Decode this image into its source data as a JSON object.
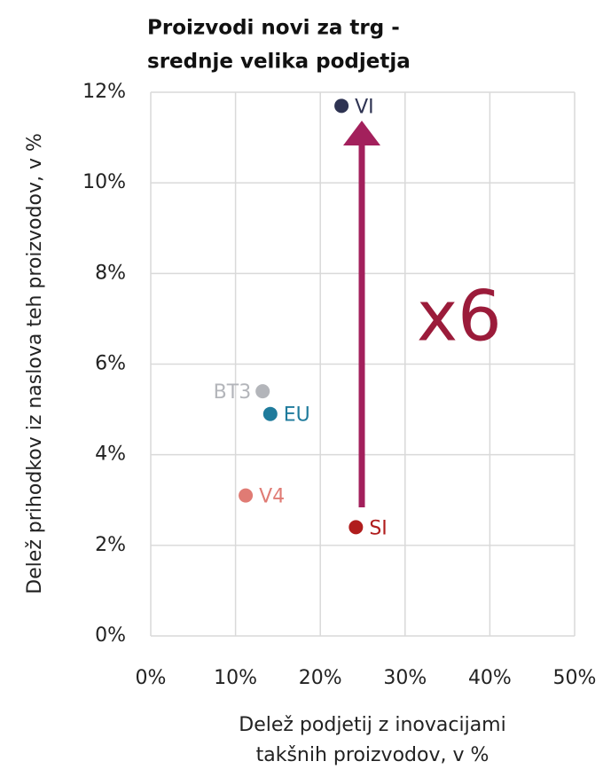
{
  "chart_data": {
    "type": "scatter",
    "title": [
      "Proizvodi novi za trg -",
      "srednje velika podjetja"
    ],
    "x_label": [
      "Delež podjetij z inovacijami",
      "takšnih proizvodov, v %"
    ],
    "y_label": "Delež prihodkov iz naslova teh proizvodov, v %",
    "series": [
      {
        "name": "VI",
        "color": "#2e3352",
        "x": [
          22.5
        ],
        "values": [
          11.7
        ]
      },
      {
        "name": "BT3",
        "color": "#b3b5ba",
        "x": [
          13.2
        ],
        "values": [
          5.4
        ]
      },
      {
        "name": "EU",
        "color": "#1f7b9c",
        "x": [
          14.1
        ],
        "values": [
          4.9
        ]
      },
      {
        "name": "V4",
        "color": "#e07b74",
        "x": [
          11.2
        ],
        "values": [
          3.1
        ]
      },
      {
        "name": "SI",
        "color": "#b01d1d",
        "x": [
          24.2
        ],
        "values": [
          2.4
        ]
      }
    ],
    "annotation": "x6",
    "xlim": [
      0,
      50
    ],
    "ylim": [
      0,
      12
    ],
    "xticks": [
      {
        "value": 0,
        "label": "0%"
      },
      {
        "value": 10,
        "label": "10%"
      },
      {
        "value": 20,
        "label": "20%"
      },
      {
        "value": 30,
        "label": "30%"
      },
      {
        "value": 40,
        "label": "40%"
      },
      {
        "value": 50,
        "label": "50%"
      }
    ],
    "yticks": [
      {
        "value": 0,
        "label": "0%"
      },
      {
        "value": 2,
        "label": "2%"
      },
      {
        "value": 4,
        "label": "4%"
      },
      {
        "value": 6,
        "label": "6%"
      },
      {
        "value": 8,
        "label": "8%"
      },
      {
        "value": 10,
        "label": "10%"
      },
      {
        "value": 12,
        "label": "12%"
      }
    ],
    "grid": true
  }
}
